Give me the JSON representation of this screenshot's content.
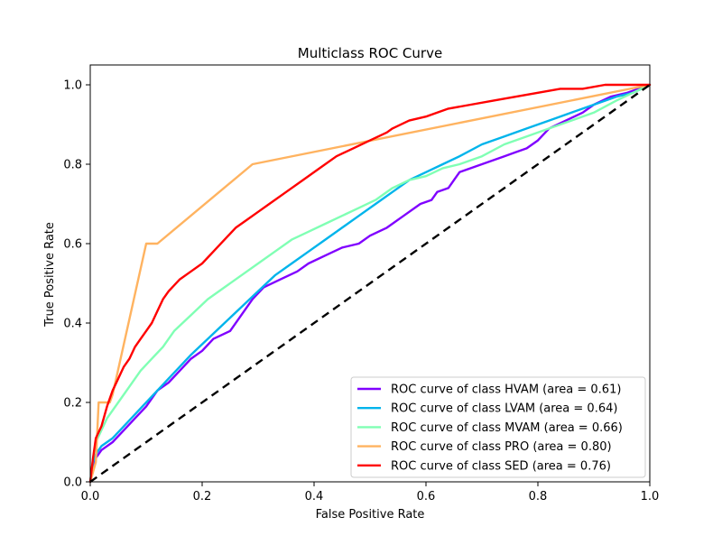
{
  "chart_data": {
    "type": "line",
    "title": "Multiclass ROC Curve",
    "xlabel": "False Positive Rate",
    "ylabel": "True Positive Rate",
    "xlim": [
      0.0,
      1.0
    ],
    "ylim": [
      0.0,
      1.05
    ],
    "x_ticks": [
      0.0,
      0.2,
      0.4,
      0.6,
      0.8,
      1.0
    ],
    "y_ticks": [
      0.0,
      0.2,
      0.4,
      0.6,
      0.8,
      1.0
    ],
    "x_tick_labels": [
      "0.0",
      "0.2",
      "0.4",
      "0.6",
      "0.8",
      "1.0"
    ],
    "y_tick_labels": [
      "0.0",
      "0.2",
      "0.4",
      "0.6",
      "0.8",
      "1.0"
    ],
    "grid": false,
    "legend_position": "lower-right",
    "series": [
      {
        "name": "ROC curve of class HVAM (area = 0.61)",
        "color": "#8000ff",
        "style": "solid",
        "x": [
          0.0,
          0.005,
          0.01,
          0.02,
          0.04,
          0.06,
          0.08,
          0.1,
          0.12,
          0.14,
          0.16,
          0.18,
          0.2,
          0.22,
          0.25,
          0.27,
          0.29,
          0.31,
          0.34,
          0.37,
          0.39,
          0.42,
          0.45,
          0.48,
          0.5,
          0.53,
          0.56,
          0.59,
          0.61,
          0.62,
          0.64,
          0.65,
          0.66,
          0.7,
          0.74,
          0.76,
          0.78,
          0.8,
          0.82,
          0.85,
          0.88,
          0.9,
          0.93,
          0.96,
          1.0
        ],
        "y": [
          0.0,
          0.04,
          0.06,
          0.08,
          0.1,
          0.13,
          0.16,
          0.19,
          0.23,
          0.25,
          0.28,
          0.31,
          0.33,
          0.36,
          0.38,
          0.42,
          0.46,
          0.49,
          0.51,
          0.53,
          0.55,
          0.57,
          0.59,
          0.6,
          0.62,
          0.64,
          0.67,
          0.7,
          0.71,
          0.73,
          0.74,
          0.76,
          0.78,
          0.8,
          0.82,
          0.83,
          0.84,
          0.86,
          0.89,
          0.91,
          0.93,
          0.95,
          0.97,
          0.98,
          1.0
        ]
      },
      {
        "name": "ROC curve of class LVAM (area = 0.64)",
        "color": "#00b4eb",
        "style": "solid",
        "x": [
          0.0,
          0.005,
          0.01,
          0.02,
          0.04,
          0.06,
          0.08,
          0.1,
          0.12,
          0.14,
          0.16,
          0.18,
          0.21,
          0.24,
          0.27,
          0.3,
          0.33,
          0.36,
          0.39,
          0.42,
          0.45,
          0.48,
          0.51,
          0.54,
          0.57,
          0.6,
          0.63,
          0.66,
          0.7,
          0.74,
          0.78,
          0.82,
          0.86,
          0.9,
          0.94,
          0.97,
          1.0
        ],
        "y": [
          0.0,
          0.05,
          0.07,
          0.09,
          0.11,
          0.14,
          0.17,
          0.2,
          0.23,
          0.26,
          0.29,
          0.32,
          0.36,
          0.4,
          0.44,
          0.48,
          0.52,
          0.55,
          0.58,
          0.61,
          0.64,
          0.67,
          0.7,
          0.73,
          0.76,
          0.78,
          0.8,
          0.82,
          0.85,
          0.87,
          0.89,
          0.91,
          0.93,
          0.95,
          0.97,
          0.98,
          1.0
        ]
      },
      {
        "name": "ROC curve of class MVAM (area = 0.66)",
        "color": "#80ffb4",
        "style": "solid",
        "x": [
          0.0,
          0.005,
          0.01,
          0.02,
          0.03,
          0.05,
          0.07,
          0.09,
          0.11,
          0.13,
          0.15,
          0.18,
          0.21,
          0.24,
          0.27,
          0.3,
          0.33,
          0.36,
          0.39,
          0.42,
          0.45,
          0.48,
          0.51,
          0.54,
          0.57,
          0.6,
          0.63,
          0.66,
          0.7,
          0.74,
          0.78,
          0.82,
          0.86,
          0.9,
          0.94,
          0.97,
          1.0
        ],
        "y": [
          0.0,
          0.06,
          0.1,
          0.13,
          0.16,
          0.2,
          0.24,
          0.28,
          0.31,
          0.34,
          0.38,
          0.42,
          0.46,
          0.49,
          0.52,
          0.55,
          0.58,
          0.61,
          0.63,
          0.65,
          0.67,
          0.69,
          0.71,
          0.74,
          0.76,
          0.77,
          0.79,
          0.8,
          0.82,
          0.85,
          0.87,
          0.89,
          0.91,
          0.93,
          0.96,
          0.98,
          1.0
        ]
      },
      {
        "name": "ROC curve of class PRO (area = 0.80)",
        "color": "#ffb360",
        "style": "solid",
        "x": [
          0.0,
          0.01,
          0.015,
          0.035,
          0.04,
          0.1,
          0.12,
          0.29,
          1.0
        ],
        "y": [
          0.0,
          0.05,
          0.2,
          0.2,
          0.22,
          0.6,
          0.6,
          0.8,
          1.0
        ]
      },
      {
        "name": "ROC curve of class SED (area = 0.76)",
        "color": "#ff0000",
        "style": "solid",
        "x": [
          0.0,
          0.005,
          0.01,
          0.02,
          0.03,
          0.04,
          0.05,
          0.06,
          0.07,
          0.08,
          0.09,
          0.1,
          0.11,
          0.12,
          0.13,
          0.14,
          0.16,
          0.18,
          0.2,
          0.22,
          0.24,
          0.26,
          0.28,
          0.3,
          0.32,
          0.35,
          0.38,
          0.41,
          0.44,
          0.47,
          0.5,
          0.53,
          0.54,
          0.57,
          0.6,
          0.64,
          0.68,
          0.72,
          0.76,
          0.8,
          0.84,
          0.88,
          0.92,
          0.96,
          1.0
        ],
        "y": [
          0.0,
          0.06,
          0.11,
          0.14,
          0.19,
          0.23,
          0.26,
          0.29,
          0.31,
          0.34,
          0.36,
          0.38,
          0.4,
          0.43,
          0.46,
          0.48,
          0.51,
          0.53,
          0.55,
          0.58,
          0.61,
          0.64,
          0.66,
          0.68,
          0.7,
          0.73,
          0.76,
          0.79,
          0.82,
          0.84,
          0.86,
          0.88,
          0.89,
          0.91,
          0.92,
          0.94,
          0.95,
          0.96,
          0.97,
          0.98,
          0.99,
          0.99,
          1.0,
          1.0,
          1.0
        ]
      }
    ],
    "reference_line": {
      "color": "#000000",
      "style": "dashed",
      "x": [
        0.0,
        1.0
      ],
      "y": [
        0.0,
        1.0
      ]
    }
  }
}
